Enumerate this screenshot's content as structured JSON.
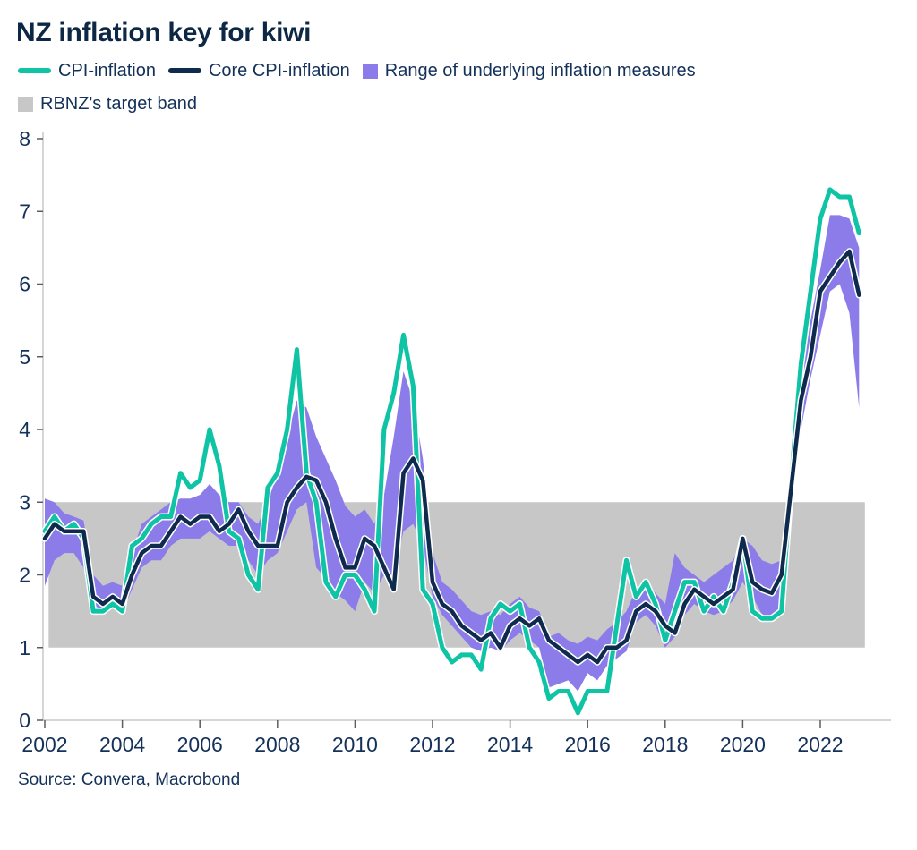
{
  "title": "NZ inflation key for kiwi",
  "source": "Source: Convera, Macrobond",
  "legend": {
    "cpi": "CPI-inflation",
    "core": "Core CPI-inflation",
    "range": "Range of underlying inflation measures",
    "band": "RBNZ's target band"
  },
  "chart_data": {
    "type": "line",
    "title": "NZ inflation key for kiwi",
    "xlabel": "",
    "ylabel": "",
    "grid": false,
    "legend_position": "top",
    "x_start": 2002,
    "x_step_years": 0.25,
    "x_end": 2023.0,
    "x_ticks": [
      2002,
      2004,
      2006,
      2008,
      2010,
      2012,
      2014,
      2016,
      2018,
      2020,
      2022
    ],
    "y_ticks": [
      0,
      1,
      2,
      3,
      4,
      5,
      6,
      7,
      8
    ],
    "ylim": [
      0,
      8.3
    ],
    "target_band": {
      "low": 1,
      "high": 3
    },
    "colors": {
      "cpi": "#0fc3a5",
      "core": "#0e2b4d",
      "range": "#8b7ce9",
      "target_band": "#c7c7c7",
      "text": "#14315a",
      "axis": "#c9c9c9",
      "tick": "#5a5e63"
    },
    "series": [
      {
        "name": "CPI-inflation",
        "values": [
          2.6,
          2.8,
          2.6,
          2.7,
          2.5,
          1.5,
          1.5,
          1.6,
          1.5,
          2.4,
          2.5,
          2.7,
          2.8,
          2.8,
          3.4,
          3.2,
          3.3,
          4.0,
          3.5,
          2.6,
          2.5,
          2.0,
          1.8,
          3.2,
          3.4,
          4.0,
          5.1,
          3.4,
          3.0,
          1.9,
          1.7,
          2.0,
          2.0,
          1.8,
          1.5,
          4.0,
          4.5,
          5.3,
          4.6,
          1.8,
          1.6,
          1.0,
          0.8,
          0.9,
          0.9,
          0.7,
          1.4,
          1.6,
          1.5,
          1.6,
          1.0,
          0.8,
          0.3,
          0.4,
          0.4,
          0.1,
          0.4,
          0.4,
          0.4,
          1.3,
          2.2,
          1.7,
          1.9,
          1.6,
          1.1,
          1.5,
          1.9,
          1.9,
          1.5,
          1.7,
          1.5,
          1.9,
          2.5,
          1.5,
          1.4,
          1.4,
          1.5,
          3.3,
          4.9,
          5.9,
          6.9,
          7.3,
          7.2,
          7.2,
          6.7
        ]
      },
      {
        "name": "Core CPI-inflation",
        "values": [
          2.5,
          2.7,
          2.6,
          2.6,
          2.6,
          1.7,
          1.6,
          1.7,
          1.6,
          2.0,
          2.3,
          2.4,
          2.4,
          2.6,
          2.8,
          2.7,
          2.8,
          2.8,
          2.6,
          2.7,
          2.9,
          2.6,
          2.4,
          2.4,
          2.4,
          3.0,
          3.2,
          3.35,
          3.3,
          3.0,
          2.5,
          2.1,
          2.1,
          2.5,
          2.4,
          2.1,
          1.8,
          3.4,
          3.6,
          3.3,
          1.9,
          1.6,
          1.5,
          1.3,
          1.2,
          1.1,
          1.2,
          1.0,
          1.3,
          1.4,
          1.3,
          1.4,
          1.1,
          1.0,
          0.9,
          0.8,
          0.9,
          0.8,
          1.0,
          1.0,
          1.1,
          1.5,
          1.6,
          1.5,
          1.3,
          1.2,
          1.6,
          1.8,
          1.7,
          1.6,
          1.7,
          1.8,
          2.5,
          1.9,
          1.8,
          1.75,
          2.0,
          3.2,
          4.4,
          5.0,
          5.9,
          6.1,
          6.3,
          6.45,
          5.85
        ]
      },
      {
        "name": "Range of underlying inflation measures",
        "lower": [
          1.85,
          2.2,
          2.3,
          2.3,
          2.1,
          1.6,
          1.5,
          1.55,
          1.5,
          1.8,
          2.1,
          2.2,
          2.2,
          2.4,
          2.5,
          2.5,
          2.5,
          2.6,
          2.5,
          2.4,
          2.4,
          2.2,
          2.0,
          2.2,
          2.3,
          2.6,
          2.9,
          3.0,
          2.1,
          1.95,
          1.75,
          1.65,
          1.5,
          1.9,
          1.75,
          2.0,
          2.0,
          2.6,
          2.7,
          2.4,
          1.7,
          1.45,
          1.3,
          1.15,
          1.0,
          0.95,
          1.0,
          0.95,
          1.1,
          1.2,
          1.1,
          1.0,
          0.45,
          0.5,
          0.55,
          0.4,
          0.65,
          0.55,
          0.75,
          0.85,
          0.95,
          1.35,
          1.45,
          1.3,
          1.0,
          1.15,
          1.45,
          1.6,
          1.5,
          1.45,
          1.5,
          1.65,
          1.9,
          1.7,
          1.45,
          1.35,
          1.5,
          2.9,
          4.0,
          4.7,
          5.3,
          5.9,
          6.0,
          5.6,
          4.3
        ],
        "upper": [
          3.05,
          3.0,
          2.85,
          2.8,
          2.75,
          2.0,
          1.85,
          1.9,
          1.85,
          2.3,
          2.7,
          2.8,
          2.9,
          3.0,
          3.05,
          3.05,
          3.1,
          3.25,
          3.1,
          3.0,
          3.0,
          2.8,
          2.7,
          3.0,
          3.4,
          3.9,
          4.4,
          4.3,
          3.9,
          3.6,
          3.3,
          2.95,
          2.8,
          2.9,
          2.7,
          3.1,
          3.9,
          4.8,
          4.4,
          3.6,
          2.3,
          1.9,
          1.8,
          1.65,
          1.5,
          1.45,
          1.5,
          1.45,
          1.6,
          1.7,
          1.55,
          1.5,
          1.15,
          1.2,
          1.1,
          1.05,
          1.15,
          1.1,
          1.25,
          1.35,
          1.5,
          1.8,
          1.9,
          1.75,
          1.6,
          2.3,
          2.1,
          2.0,
          1.9,
          2.0,
          2.1,
          2.2,
          2.5,
          2.4,
          2.2,
          2.15,
          2.2,
          3.5,
          4.7,
          5.5,
          6.2,
          6.95,
          6.95,
          6.9,
          6.5
        ]
      }
    ]
  }
}
